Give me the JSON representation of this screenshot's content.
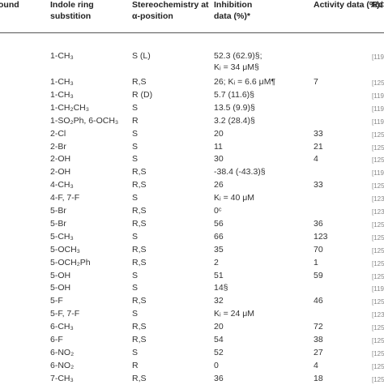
{
  "header": [
    [
      "ound"
    ],
    [
      "Indole ring",
      "substition"
    ],
    [
      "Stereochemistry at",
      "α-position"
    ],
    [
      "Inhibition",
      "data (%)*"
    ],
    [
      "Activity data (%)‡"
    ],
    [
      "Re"
    ]
  ],
  "rows": [
    {
      "substitution": "1-CH₃",
      "stereo": "S (L)",
      "inhibition": [
        "52.3 (62.9)§;",
        "Kᵢ = 34 μM§"
      ],
      "ref": "[119"
    },
    {
      "substitution": "1-CH₃",
      "stereo": "R,S",
      "inhibition": [
        "26; Kᵢ = 6.6 μM¶"
      ],
      "activity": "7",
      "ref": "[125"
    },
    {
      "substitution": "1-CH₃",
      "stereo": "R (D)",
      "inhibition": [
        "5.7 (11.6)§"
      ],
      "ref": "[119"
    },
    {
      "substitution": "1-CH₂CH₃",
      "stereo": "S",
      "inhibition": [
        "13.5 (9.9)§"
      ],
      "ref": "[119"
    },
    {
      "substitution": "1-SO₂Ph, 6-OCH₃",
      "stereo": "R",
      "inhibition": [
        "3.2 (28.4)§"
      ],
      "ref": "[119"
    },
    {
      "substitution": "2-Cl",
      "stereo": "S",
      "inhibition": [
        "20"
      ],
      "activity": "33",
      "ref": "[125"
    },
    {
      "substitution": "2-Br",
      "stereo": "S",
      "inhibition": [
        "11"
      ],
      "activity": "21",
      "ref": "[125"
    },
    {
      "substitution": "2-OH",
      "stereo": "S",
      "inhibition": [
        "30"
      ],
      "activity": "4",
      "ref": "[125"
    },
    {
      "substitution": "2-OH",
      "stereo": "R,S",
      "inhibition": [
        "-38.4 (-43.3)§"
      ],
      "ref": "[119"
    },
    {
      "substitution": "4-CH₃",
      "stereo": "R,S",
      "inhibition": [
        "26"
      ],
      "activity": "33",
      "ref": "[125"
    },
    {
      "substitution": "4-F, 7-F",
      "stereo": "S",
      "inhibition": [
        "Kᵢ = 40 μM"
      ],
      "ref": "[123"
    },
    {
      "substitution": "5-Br",
      "stereo": "R,S",
      "inhibition": [
        "0ᶜ"
      ],
      "ref": "[123"
    },
    {
      "substitution": "5-Br",
      "stereo": "R,S",
      "inhibition": [
        "56"
      ],
      "activity": "36",
      "ref": "[125"
    },
    {
      "substitution": "5-CH₃",
      "stereo": "S",
      "inhibition": [
        "66"
      ],
      "activity": "123",
      "ref": "[125"
    },
    {
      "substitution": "5-OCH₃",
      "stereo": "R,S",
      "inhibition": [
        "35"
      ],
      "activity": "70",
      "ref": "[125"
    },
    {
      "substitution": "5-OCH₂Ph",
      "stereo": "R,S",
      "inhibition": [
        "2"
      ],
      "activity": "1",
      "ref": "[125"
    },
    {
      "substitution": "5-OH",
      "stereo": "S",
      "inhibition": [
        "51"
      ],
      "activity": "59",
      "ref": "[125"
    },
    {
      "substitution": "5-OH",
      "stereo": "S",
      "inhibition": [
        "14§"
      ],
      "ref": "[119"
    },
    {
      "substitution": "5-F",
      "stereo": "R,S",
      "inhibition": [
        "32"
      ],
      "activity": "46",
      "ref": "[125"
    },
    {
      "substitution": "5-F, 7-F",
      "stereo": "S",
      "inhibition": [
        "Kᵢ = 24 μM"
      ],
      "ref": "[123"
    },
    {
      "substitution": "6-CH₃",
      "stereo": "R,S",
      "inhibition": [
        "20"
      ],
      "activity": "72",
      "ref": "[125"
    },
    {
      "substitution": "6-F",
      "stereo": "R,S",
      "inhibition": [
        "54"
      ],
      "activity": "38",
      "ref": "[125"
    },
    {
      "substitution": "6-NO₂",
      "stereo": "S",
      "inhibition": [
        "52"
      ],
      "activity": "27",
      "ref": "[125"
    },
    {
      "substitution": "6-NO₂",
      "stereo": "R",
      "inhibition": [
        "0"
      ],
      "activity": "4",
      "ref": "[125"
    },
    {
      "substitution": "7-CH₃",
      "stereo": "R,S",
      "inhibition": [
        "36"
      ],
      "activity": "18",
      "ref": "[125"
    }
  ]
}
